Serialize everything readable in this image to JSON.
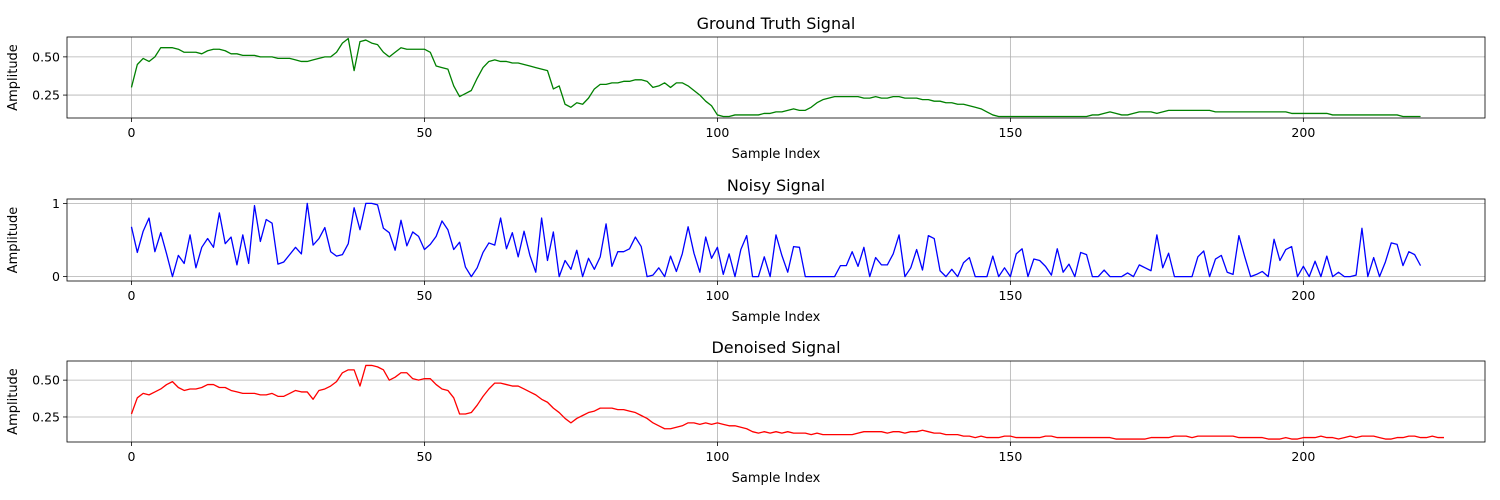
{
  "chart_data": [
    {
      "type": "line",
      "title": "Ground Truth Signal",
      "xlabel": "Sample Index",
      "ylabel": "Amplitude",
      "xlim": [
        -11,
        231
      ],
      "ylim": [
        0.1,
        0.63
      ],
      "xticks": [
        0,
        50,
        100,
        150,
        200
      ],
      "yticks": [
        0.25,
        0.5
      ],
      "ytick_labels": [
        "0.25",
        "0.50"
      ],
      "grid": true,
      "color": "#008000",
      "x_start": 0,
      "values": [
        0.3,
        0.45,
        0.49,
        0.47,
        0.5,
        0.56,
        0.56,
        0.56,
        0.55,
        0.53,
        0.53,
        0.53,
        0.52,
        0.54,
        0.55,
        0.55,
        0.54,
        0.52,
        0.52,
        0.51,
        0.51,
        0.51,
        0.5,
        0.5,
        0.5,
        0.49,
        0.49,
        0.49,
        0.48,
        0.47,
        0.47,
        0.48,
        0.49,
        0.5,
        0.5,
        0.53,
        0.59,
        0.62,
        0.41,
        0.6,
        0.61,
        0.59,
        0.58,
        0.53,
        0.5,
        0.53,
        0.56,
        0.55,
        0.55,
        0.55,
        0.55,
        0.53,
        0.44,
        0.43,
        0.42,
        0.31,
        0.24,
        0.26,
        0.28,
        0.36,
        0.43,
        0.47,
        0.48,
        0.47,
        0.47,
        0.46,
        0.46,
        0.45,
        0.44,
        0.43,
        0.42,
        0.41,
        0.29,
        0.31,
        0.19,
        0.17,
        0.2,
        0.19,
        0.23,
        0.29,
        0.32,
        0.32,
        0.33,
        0.33,
        0.34,
        0.34,
        0.35,
        0.35,
        0.34,
        0.3,
        0.31,
        0.33,
        0.3,
        0.33,
        0.33,
        0.31,
        0.28,
        0.25,
        0.21,
        0.18,
        0.12,
        0.11,
        0.11,
        0.12,
        0.12,
        0.12,
        0.12,
        0.12,
        0.13,
        0.13,
        0.14,
        0.14,
        0.15,
        0.16,
        0.15,
        0.15,
        0.17,
        0.2,
        0.22,
        0.23,
        0.24,
        0.24,
        0.24,
        0.24,
        0.24,
        0.23,
        0.23,
        0.24,
        0.23,
        0.23,
        0.24,
        0.24,
        0.23,
        0.23,
        0.23,
        0.22,
        0.22,
        0.21,
        0.21,
        0.2,
        0.2,
        0.19,
        0.19,
        0.18,
        0.17,
        0.16,
        0.14,
        0.12,
        0.11,
        0.11,
        0.11,
        0.11,
        0.11,
        0.11,
        0.11,
        0.11,
        0.11,
        0.11,
        0.11,
        0.11,
        0.11,
        0.11,
        0.11,
        0.11,
        0.12,
        0.12,
        0.13,
        0.14,
        0.13,
        0.12,
        0.12,
        0.13,
        0.14,
        0.14,
        0.14,
        0.13,
        0.14,
        0.15,
        0.15,
        0.15,
        0.15,
        0.15,
        0.15,
        0.15,
        0.15,
        0.14,
        0.14,
        0.14,
        0.14,
        0.14,
        0.14,
        0.14,
        0.14,
        0.14,
        0.14,
        0.14,
        0.14,
        0.14,
        0.13,
        0.13,
        0.13,
        0.13,
        0.13,
        0.13,
        0.13,
        0.12,
        0.12,
        0.12,
        0.12,
        0.12,
        0.12,
        0.12,
        0.12,
        0.12,
        0.12,
        0.12,
        0.12,
        0.11,
        0.11,
        0.11,
        0.11
      ]
    },
    {
      "type": "line",
      "title": "Noisy Signal",
      "xlabel": "Sample Index",
      "ylabel": "Amplitude",
      "xlim": [
        -11,
        231
      ],
      "ylim": [
        -0.06,
        1.06
      ],
      "xticks": [
        0,
        50,
        100,
        150,
        200
      ],
      "yticks": [
        0,
        1
      ],
      "ytick_labels": [
        "0",
        "1"
      ],
      "grid": true,
      "color": "#0000ff",
      "x_start": 0,
      "values": [
        0.68,
        0.33,
        0.62,
        0.8,
        0.34,
        0.6,
        0.31,
        0.0,
        0.29,
        0.18,
        0.57,
        0.12,
        0.4,
        0.52,
        0.4,
        0.87,
        0.45,
        0.54,
        0.16,
        0.57,
        0.18,
        0.97,
        0.48,
        0.78,
        0.73,
        0.17,
        0.2,
        0.3,
        0.4,
        0.31,
        1.0,
        0.43,
        0.52,
        0.67,
        0.34,
        0.28,
        0.3,
        0.45,
        0.94,
        0.64,
        1.0,
        1.0,
        0.98,
        0.66,
        0.6,
        0.36,
        0.77,
        0.42,
        0.61,
        0.55,
        0.37,
        0.44,
        0.55,
        0.76,
        0.64,
        0.37,
        0.47,
        0.13,
        0.0,
        0.12,
        0.33,
        0.46,
        0.43,
        0.8,
        0.38,
        0.6,
        0.27,
        0.62,
        0.29,
        0.06,
        0.8,
        0.22,
        0.61,
        0.0,
        0.22,
        0.1,
        0.36,
        0.0,
        0.25,
        0.1,
        0.27,
        0.72,
        0.14,
        0.34,
        0.34,
        0.38,
        0.54,
        0.41,
        0.0,
        0.02,
        0.12,
        0.0,
        0.28,
        0.07,
        0.31,
        0.68,
        0.32,
        0.06,
        0.54,
        0.25,
        0.4,
        0.03,
        0.31,
        0.0,
        0.37,
        0.56,
        0.0,
        0.0,
        0.27,
        0.0,
        0.57,
        0.29,
        0.06,
        0.41,
        0.4,
        0.0,
        0.0,
        0.0,
        0.0,
        0.0,
        0.0,
        0.15,
        0.15,
        0.34,
        0.14,
        0.4,
        0.0,
        0.26,
        0.16,
        0.16,
        0.31,
        0.57,
        0.0,
        0.12,
        0.37,
        0.09,
        0.56,
        0.52,
        0.08,
        0.0,
        0.1,
        0.0,
        0.19,
        0.26,
        0.0,
        0.0,
        0.0,
        0.28,
        0.0,
        0.12,
        0.0,
        0.31,
        0.38,
        0.0,
        0.24,
        0.22,
        0.14,
        0.02,
        0.38,
        0.06,
        0.17,
        0.0,
        0.33,
        0.3,
        0.0,
        0.0,
        0.09,
        0.0,
        0.0,
        0.0,
        0.05,
        0.0,
        0.16,
        0.12,
        0.08,
        0.57,
        0.12,
        0.32,
        0.0,
        0.0,
        0.0,
        0.0,
        0.27,
        0.35,
        0.0,
        0.24,
        0.29,
        0.06,
        0.03,
        0.56,
        0.27,
        0.0,
        0.03,
        0.07,
        0.0,
        0.51,
        0.22,
        0.37,
        0.41,
        0.0,
        0.14,
        0.0,
        0.21,
        0.0,
        0.28,
        0.0,
        0.06,
        0.0,
        0.0,
        0.02,
        0.66,
        0.0,
        0.26,
        0.0,
        0.2,
        0.46,
        0.44,
        0.15,
        0.34,
        0.3,
        0.15
      ]
    },
    {
      "type": "line",
      "title": "Denoised Signal",
      "xlabel": "Sample Index",
      "ylabel": "Amplitude",
      "xlim": [
        -11,
        231
      ],
      "ylim": [
        0.08,
        0.63
      ],
      "xticks": [
        0,
        50,
        100,
        150,
        200
      ],
      "yticks": [
        0.25,
        0.5
      ],
      "ytick_labels": [
        "0.25",
        "0.50"
      ],
      "grid": true,
      "color": "#ff0000",
      "x_start": 0,
      "values": [
        0.27,
        0.38,
        0.41,
        0.4,
        0.42,
        0.44,
        0.47,
        0.49,
        0.45,
        0.43,
        0.44,
        0.44,
        0.45,
        0.47,
        0.47,
        0.45,
        0.45,
        0.43,
        0.42,
        0.41,
        0.41,
        0.41,
        0.4,
        0.4,
        0.41,
        0.39,
        0.39,
        0.41,
        0.43,
        0.42,
        0.42,
        0.37,
        0.43,
        0.44,
        0.46,
        0.49,
        0.55,
        0.57,
        0.57,
        0.46,
        0.6,
        0.6,
        0.59,
        0.57,
        0.5,
        0.52,
        0.55,
        0.55,
        0.51,
        0.5,
        0.51,
        0.51,
        0.47,
        0.44,
        0.43,
        0.38,
        0.27,
        0.27,
        0.28,
        0.33,
        0.39,
        0.44,
        0.48,
        0.48,
        0.47,
        0.46,
        0.46,
        0.44,
        0.42,
        0.4,
        0.37,
        0.35,
        0.31,
        0.28,
        0.24,
        0.21,
        0.24,
        0.26,
        0.28,
        0.29,
        0.31,
        0.31,
        0.31,
        0.3,
        0.3,
        0.29,
        0.28,
        0.26,
        0.24,
        0.21,
        0.19,
        0.17,
        0.17,
        0.18,
        0.19,
        0.21,
        0.21,
        0.2,
        0.21,
        0.2,
        0.21,
        0.2,
        0.19,
        0.19,
        0.18,
        0.17,
        0.15,
        0.14,
        0.15,
        0.14,
        0.15,
        0.14,
        0.15,
        0.14,
        0.14,
        0.14,
        0.13,
        0.14,
        0.13,
        0.13,
        0.13,
        0.13,
        0.13,
        0.13,
        0.14,
        0.15,
        0.15,
        0.15,
        0.15,
        0.14,
        0.15,
        0.15,
        0.14,
        0.15,
        0.15,
        0.16,
        0.15,
        0.14,
        0.14,
        0.13,
        0.13,
        0.13,
        0.12,
        0.12,
        0.11,
        0.12,
        0.11,
        0.11,
        0.11,
        0.12,
        0.12,
        0.11,
        0.11,
        0.11,
        0.11,
        0.11,
        0.12,
        0.12,
        0.11,
        0.11,
        0.11,
        0.11,
        0.11,
        0.11,
        0.11,
        0.11,
        0.11,
        0.11,
        0.1,
        0.1,
        0.1,
        0.1,
        0.1,
        0.1,
        0.11,
        0.11,
        0.11,
        0.11,
        0.12,
        0.12,
        0.12,
        0.11,
        0.12,
        0.12,
        0.12,
        0.12,
        0.12,
        0.12,
        0.12,
        0.11,
        0.11,
        0.11,
        0.11,
        0.11,
        0.1,
        0.1,
        0.1,
        0.11,
        0.1,
        0.1,
        0.11,
        0.11,
        0.11,
        0.12,
        0.11,
        0.11,
        0.1,
        0.11,
        0.12,
        0.11,
        0.12,
        0.12,
        0.12,
        0.11,
        0.1,
        0.1,
        0.11,
        0.11,
        0.12,
        0.12,
        0.11,
        0.11,
        0.12,
        0.11,
        0.11
      ]
    }
  ]
}
